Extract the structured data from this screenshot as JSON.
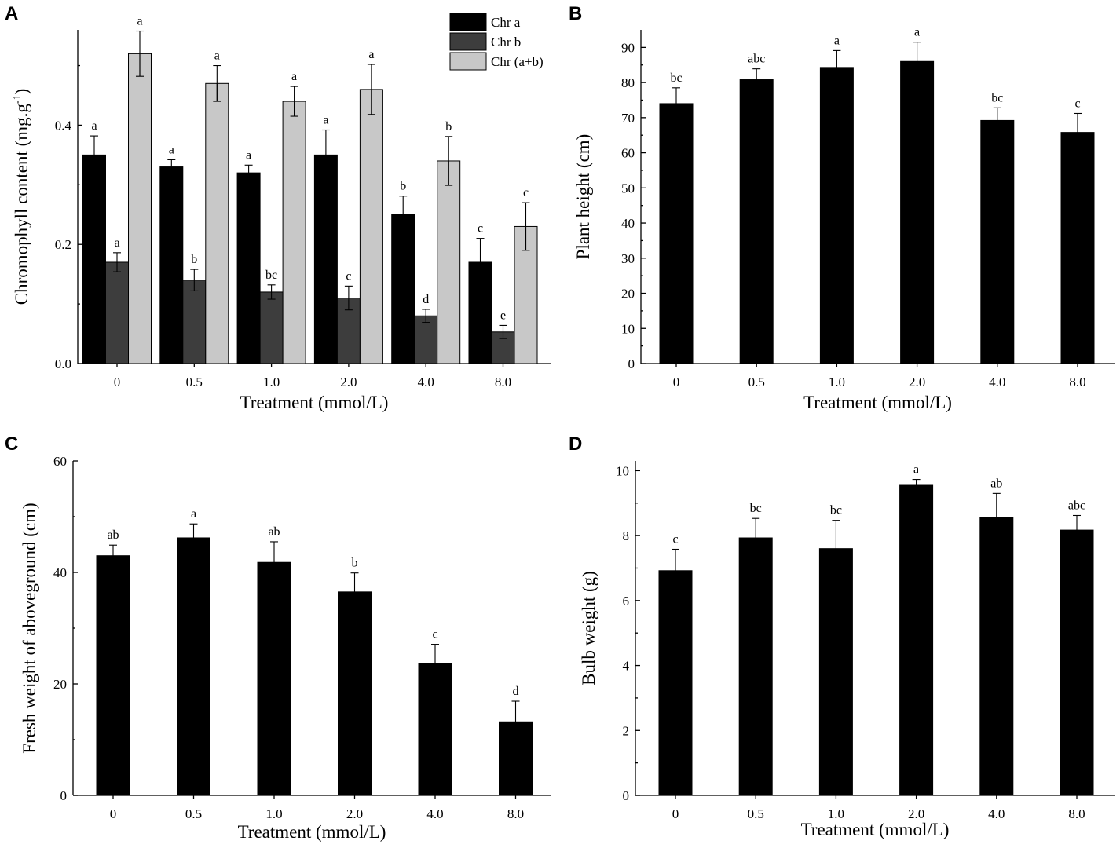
{
  "colors": {
    "chr_a": "#000000",
    "chr_b": "#3d3d3d",
    "chr_ab": "#c8c8c8",
    "single": "#000000"
  },
  "chart_data": [
    {
      "id": "A",
      "panel_letter": "A",
      "type": "bar",
      "categories": [
        "0",
        "0.5",
        "1.0",
        "2.0",
        "4.0",
        "8.0"
      ],
      "xlabel": "Treatment (mmol/L)",
      "ylabel_main": "Chromophyll content (mg.g",
      "ylabel_sup": "-1",
      "ylabel_close": ")",
      "ylim": [
        0,
        0.56
      ],
      "yticks": [
        0.0,
        0.2,
        0.4
      ],
      "ytick_labels": [
        "0.0",
        "0.2",
        "0.4"
      ],
      "legend_position": "top-right",
      "series": [
        {
          "name": "Chr a",
          "color_key": "chr_a",
          "values": [
            0.35,
            0.33,
            0.32,
            0.35,
            0.25,
            0.17
          ],
          "errors": [
            0.032,
            0.012,
            0.013,
            0.042,
            0.031,
            0.04
          ],
          "letters": [
            "a",
            "a",
            "a",
            "a",
            "b",
            "c"
          ]
        },
        {
          "name": "Chr b",
          "color_key": "chr_b",
          "values": [
            0.17,
            0.14,
            0.12,
            0.11,
            0.08,
            0.053
          ],
          "errors": [
            0.016,
            0.018,
            0.012,
            0.02,
            0.011,
            0.011
          ],
          "letters": [
            "a",
            "b",
            "bc",
            "c",
            "d",
            "e"
          ]
        },
        {
          "name": "Chr (a+b)",
          "color_key": "chr_ab",
          "values": [
            0.52,
            0.47,
            0.44,
            0.46,
            0.34,
            0.23
          ],
          "errors": [
            0.038,
            0.03,
            0.025,
            0.042,
            0.041,
            0.04
          ],
          "letters": [
            "a",
            "a",
            "a",
            "a",
            "b",
            "c"
          ]
        }
      ]
    },
    {
      "id": "B",
      "panel_letter": "B",
      "type": "bar",
      "categories": [
        "0",
        "0.5",
        "1.0",
        "2.0",
        "4.0",
        "8.0"
      ],
      "xlabel": "Treatment (mmol/L)",
      "ylabel_main": "Plant height (cm)",
      "ylim": [
        0,
        95
      ],
      "yticks": [
        0,
        10,
        20,
        30,
        40,
        50,
        60,
        70,
        80,
        90
      ],
      "ytick_labels": [
        "0",
        "10",
        "20",
        "30",
        "40",
        "50",
        "60",
        "70",
        "80",
        "90"
      ],
      "series": [
        {
          "name": "Plant height",
          "color_key": "single",
          "values": [
            74,
            80.8,
            84.3,
            86,
            69.2,
            65.8
          ],
          "errors": [
            4.5,
            3.1,
            4.8,
            5.5,
            3.6,
            5.4
          ],
          "letters": [
            "bc",
            "abc",
            "a",
            "a",
            "bc",
            "c"
          ]
        }
      ]
    },
    {
      "id": "C",
      "panel_letter": "C",
      "type": "bar",
      "categories": [
        "0",
        "0.5",
        "1.0",
        "2.0",
        "4.0",
        "8.0"
      ],
      "xlabel": "Treatment (mmol/L)",
      "ylabel_main": "Fresh weight of aboveground (cm)",
      "ylim": [
        0,
        60
      ],
      "yticks": [
        0,
        20,
        40,
        60
      ],
      "ytick_labels": [
        "0",
        "20",
        "40",
        "60"
      ],
      "series": [
        {
          "name": "Fresh weight",
          "color_key": "single",
          "values": [
            43,
            46.2,
            41.8,
            36.5,
            23.6,
            13.2
          ],
          "errors": [
            1.9,
            2.5,
            3.7,
            3.4,
            3.5,
            3.7
          ],
          "letters": [
            "ab",
            "a",
            "ab",
            "b",
            "c",
            "d"
          ]
        }
      ]
    },
    {
      "id": "D",
      "panel_letter": "D",
      "type": "bar",
      "categories": [
        "0",
        "0.5",
        "1.0",
        "2.0",
        "4.0",
        "8.0"
      ],
      "xlabel": "Treatment (mmol/L)",
      "ylabel_main": "Bulb weight (g)",
      "ylim": [
        0,
        10.3
      ],
      "yticks": [
        0,
        2,
        4,
        6,
        8,
        10
      ],
      "ytick_labels": [
        "0",
        "2",
        "4",
        "6",
        "8",
        "10"
      ],
      "series": [
        {
          "name": "Bulb weight",
          "color_key": "single",
          "values": [
            6.92,
            7.93,
            7.6,
            9.55,
            8.55,
            8.17
          ],
          "errors": [
            0.66,
            0.6,
            0.87,
            0.18,
            0.75,
            0.45
          ],
          "letters": [
            "c",
            "bc",
            "bc",
            "a",
            "ab",
            "abc"
          ]
        }
      ]
    }
  ]
}
